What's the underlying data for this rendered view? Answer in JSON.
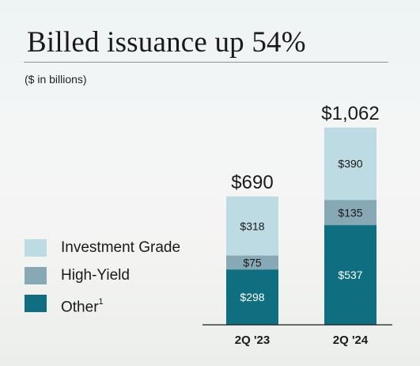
{
  "chart_data": {
    "type": "bar",
    "stacked": true,
    "title": "Billed issuance up 54%",
    "subtitle": "($ in billions)",
    "categories": [
      "2Q '23",
      "2Q '24"
    ],
    "totals": [
      690,
      1062
    ],
    "total_labels": [
      "$690",
      "$1,062"
    ],
    "series": [
      {
        "name": "Other",
        "footnote": "1",
        "color": "#0f6e80",
        "label_color": "#ffffff",
        "values": [
          298,
          537
        ],
        "labels": [
          "$298",
          "$537"
        ]
      },
      {
        "name": "High-Yield",
        "color": "#86a9b5",
        "label_color": "#1a1a1a",
        "values": [
          75,
          135
        ],
        "labels": [
          "$75",
          "$135"
        ]
      },
      {
        "name": "Investment Grade",
        "color": "#bcdbe2",
        "label_color": "#1a1a1a",
        "values": [
          318,
          390
        ],
        "labels": [
          "$318",
          "$390"
        ]
      }
    ],
    "legend_order": [
      2,
      1,
      0
    ],
    "legend_position": "left"
  }
}
